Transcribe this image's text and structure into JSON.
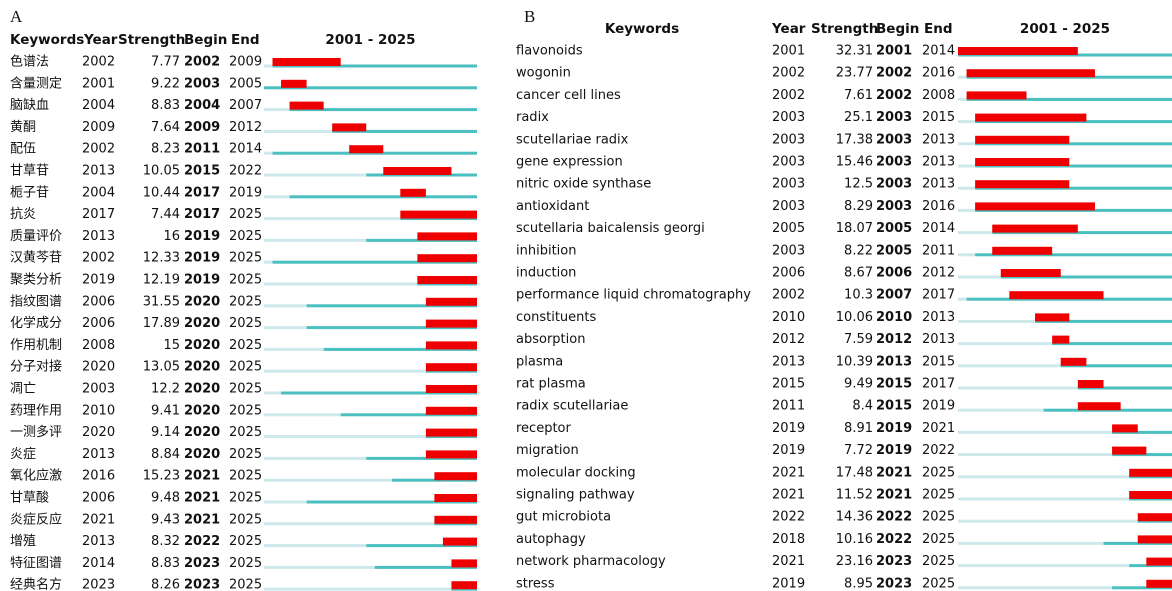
{
  "columns": [
    "Keywords",
    "Year",
    "Strength",
    "Begin",
    "End"
  ],
  "period": {
    "start": 2001,
    "end": 2025,
    "label": "2001 - 2025"
  },
  "panels": [
    {
      "label": "A",
      "rows": [
        {
          "keyword": "色谱法",
          "year": 2002,
          "strength": 7.77,
          "begin": 2002,
          "end": 2009
        },
        {
          "keyword": "含量测定",
          "year": 2001,
          "strength": 9.22,
          "begin": 2003,
          "end": 2005
        },
        {
          "keyword": "脑缺血",
          "year": 2004,
          "strength": 8.83,
          "begin": 2004,
          "end": 2007
        },
        {
          "keyword": "黄酮",
          "year": 2009,
          "strength": 7.64,
          "begin": 2009,
          "end": 2012
        },
        {
          "keyword": "配伍",
          "year": 2002,
          "strength": 8.23,
          "begin": 2011,
          "end": 2014
        },
        {
          "keyword": "甘草苷",
          "year": 2013,
          "strength": 10.05,
          "begin": 2015,
          "end": 2022
        },
        {
          "keyword": "栀子苷",
          "year": 2004,
          "strength": 10.44,
          "begin": 2017,
          "end": 2019
        },
        {
          "keyword": "抗炎",
          "year": 2017,
          "strength": 7.44,
          "begin": 2017,
          "end": 2025
        },
        {
          "keyword": "质量评价",
          "year": 2013,
          "strength": 16,
          "begin": 2019,
          "end": 2025
        },
        {
          "keyword": "汉黄芩苷",
          "year": 2002,
          "strength": 12.33,
          "begin": 2019,
          "end": 2025
        },
        {
          "keyword": "聚类分析",
          "year": 2019,
          "strength": 12.19,
          "begin": 2019,
          "end": 2025
        },
        {
          "keyword": "指纹图谱",
          "year": 2006,
          "strength": 31.55,
          "begin": 2020,
          "end": 2025
        },
        {
          "keyword": "化学成分",
          "year": 2006,
          "strength": 17.89,
          "begin": 2020,
          "end": 2025
        },
        {
          "keyword": "作用机制",
          "year": 2008,
          "strength": 15,
          "begin": 2020,
          "end": 2025
        },
        {
          "keyword": "分子对接",
          "year": 2020,
          "strength": 13.05,
          "begin": 2020,
          "end": 2025
        },
        {
          "keyword": "凋亡",
          "year": 2003,
          "strength": 12.2,
          "begin": 2020,
          "end": 2025
        },
        {
          "keyword": "药理作用",
          "year": 2010,
          "strength": 9.41,
          "begin": 2020,
          "end": 2025
        },
        {
          "keyword": "一测多评",
          "year": 2020,
          "strength": 9.14,
          "begin": 2020,
          "end": 2025
        },
        {
          "keyword": "炎症",
          "year": 2013,
          "strength": 8.84,
          "begin": 2020,
          "end": 2025
        },
        {
          "keyword": "氧化应激",
          "year": 2016,
          "strength": 15.23,
          "begin": 2021,
          "end": 2025
        },
        {
          "keyword": "甘草酸",
          "year": 2006,
          "strength": 9.48,
          "begin": 2021,
          "end": 2025
        },
        {
          "keyword": "炎症反应",
          "year": 2021,
          "strength": 9.43,
          "begin": 2021,
          "end": 2025
        },
        {
          "keyword": "增殖",
          "year": 2013,
          "strength": 8.32,
          "begin": 2022,
          "end": 2025
        },
        {
          "keyword": "特征图谱",
          "year": 2014,
          "strength": 8.83,
          "begin": 2023,
          "end": 2025
        },
        {
          "keyword": "经典名方",
          "year": 2023,
          "strength": 8.26,
          "begin": 2023,
          "end": 2025
        }
      ]
    },
    {
      "label": "B",
      "rows": [
        {
          "keyword": "flavonoids",
          "year": 2001,
          "strength": 32.31,
          "begin": 2001,
          "end": 2014
        },
        {
          "keyword": "wogonin",
          "year": 2002,
          "strength": 23.77,
          "begin": 2002,
          "end": 2016
        },
        {
          "keyword": "cancer cell lines",
          "year": 2002,
          "strength": 7.61,
          "begin": 2002,
          "end": 2008
        },
        {
          "keyword": "radix",
          "year": 2003,
          "strength": 25.1,
          "begin": 2003,
          "end": 2015
        },
        {
          "keyword": "scutellariae radix",
          "year": 2003,
          "strength": 17.38,
          "begin": 2003,
          "end": 2013
        },
        {
          "keyword": "gene expression",
          "year": 2003,
          "strength": 15.46,
          "begin": 2003,
          "end": 2013
        },
        {
          "keyword": "nitric oxide synthase",
          "year": 2003,
          "strength": 12.5,
          "begin": 2003,
          "end": 2013
        },
        {
          "keyword": "antioxidant",
          "year": 2003,
          "strength": 8.29,
          "begin": 2003,
          "end": 2016
        },
        {
          "keyword": "scutellaria baicalensis georgi",
          "year": 2005,
          "strength": 18.07,
          "begin": 2005,
          "end": 2014
        },
        {
          "keyword": "inhibition",
          "year": 2003,
          "strength": 8.22,
          "begin": 2005,
          "end": 2011
        },
        {
          "keyword": "induction",
          "year": 2006,
          "strength": 8.67,
          "begin": 2006,
          "end": 2012
        },
        {
          "keyword": "performance liquid chromatography",
          "year": 2002,
          "strength": 10.3,
          "begin": 2007,
          "end": 2017
        },
        {
          "keyword": "constituents",
          "year": 2010,
          "strength": 10.06,
          "begin": 2010,
          "end": 2013
        },
        {
          "keyword": "absorption",
          "year": 2012,
          "strength": 7.59,
          "begin": 2012,
          "end": 2013
        },
        {
          "keyword": "plasma",
          "year": 2013,
          "strength": 10.39,
          "begin": 2013,
          "end": 2015
        },
        {
          "keyword": "rat plasma",
          "year": 2015,
          "strength": 9.49,
          "begin": 2015,
          "end": 2017
        },
        {
          "keyword": "radix scutellariae",
          "year": 2011,
          "strength": 8.4,
          "begin": 2015,
          "end": 2019
        },
        {
          "keyword": "receptor",
          "year": 2019,
          "strength": 8.91,
          "begin": 2019,
          "end": 2021
        },
        {
          "keyword": "migration",
          "year": 2019,
          "strength": 7.72,
          "begin": 2019,
          "end": 2022
        },
        {
          "keyword": "molecular docking",
          "year": 2021,
          "strength": 17.48,
          "begin": 2021,
          "end": 2025
        },
        {
          "keyword": "signaling pathway",
          "year": 2021,
          "strength": 11.52,
          "begin": 2021,
          "end": 2025
        },
        {
          "keyword": "gut microbiota",
          "year": 2022,
          "strength": 14.36,
          "begin": 2022,
          "end": 2025
        },
        {
          "keyword": "autophagy",
          "year": 2018,
          "strength": 10.16,
          "begin": 2022,
          "end": 2025
        },
        {
          "keyword": "network pharmacology",
          "year": 2021,
          "strength": 23.16,
          "begin": 2023,
          "end": 2025
        },
        {
          "keyword": "stress",
          "year": 2019,
          "strength": 8.95,
          "begin": 2023,
          "end": 2025
        }
      ]
    }
  ]
}
